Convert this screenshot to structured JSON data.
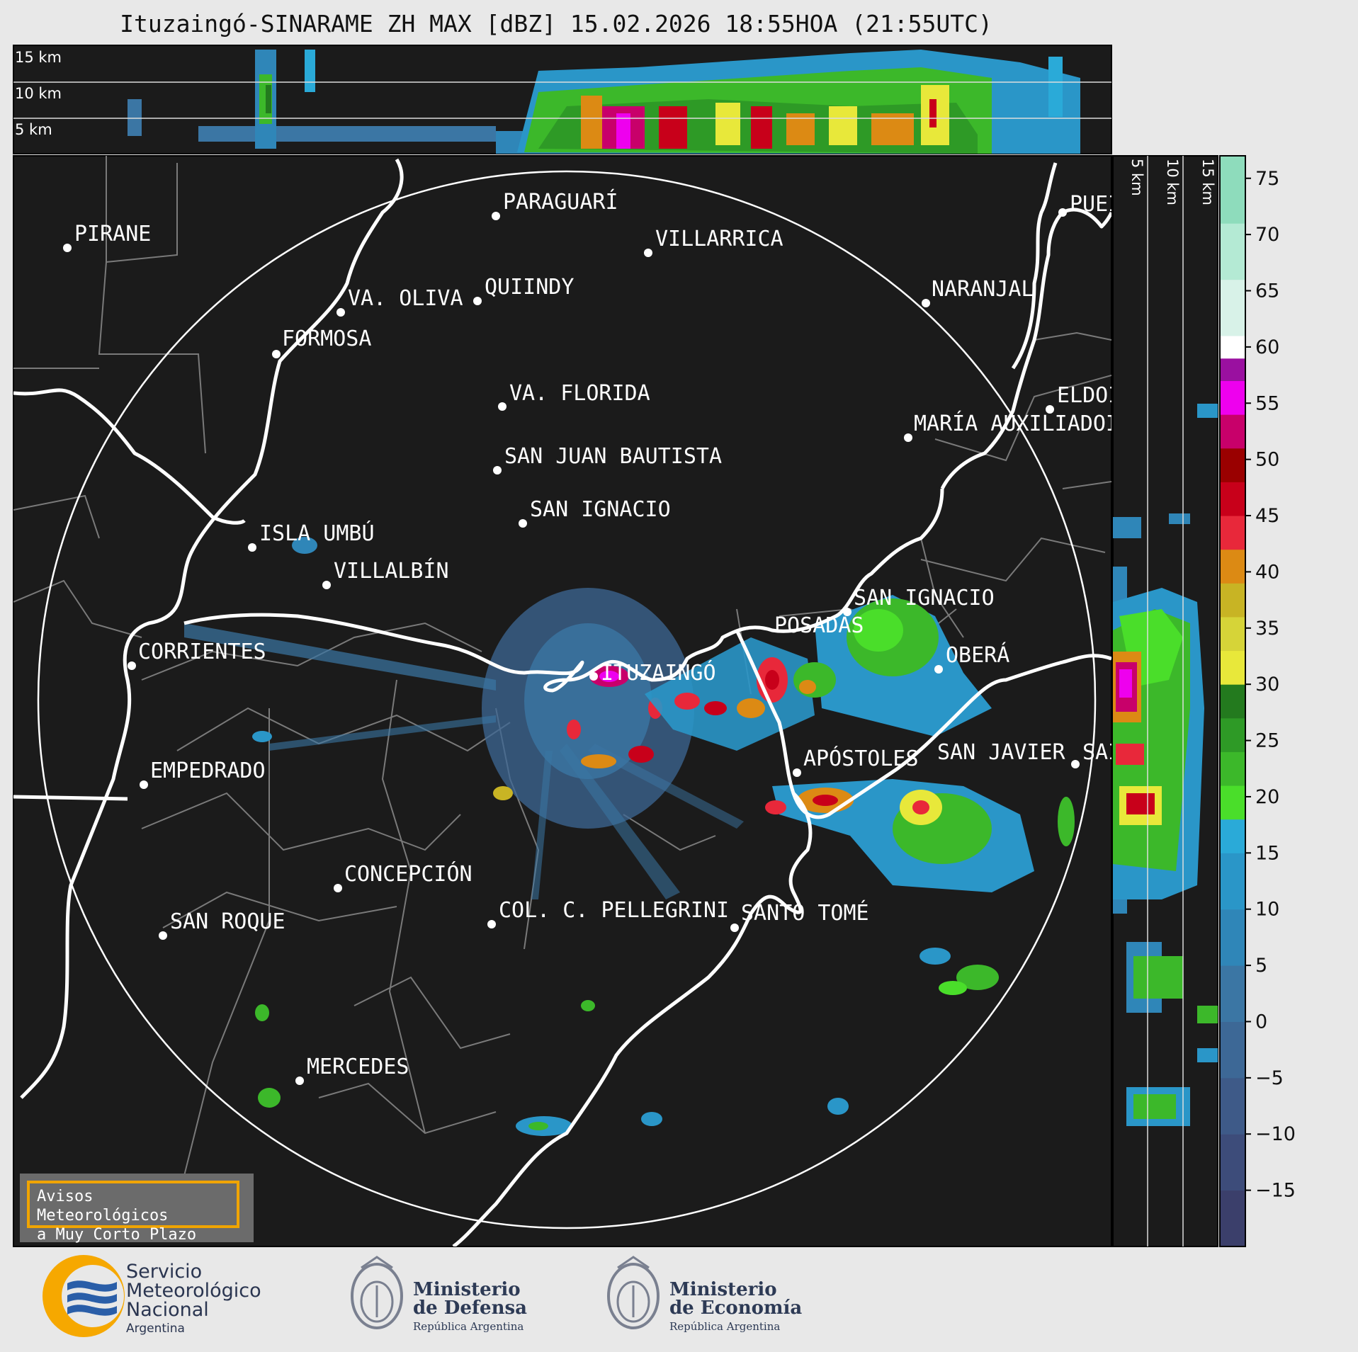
{
  "title": "Ituzaingó-SINARAME ZH MAX [dBZ] 15.02.2026 18:55HOA (21:55UTC)",
  "top_panel_heights": [
    "15 km",
    "10 km",
    "5 km"
  ],
  "side_panel_heights": [
    "5 km",
    "10 km",
    "15 km"
  ],
  "cities": [
    {
      "name": "PIRANE"
    },
    {
      "name": "PARAGUARÍ"
    },
    {
      "name": "VILLARRICA"
    },
    {
      "name": "QUIINDY"
    },
    {
      "name": "VA. OLIVA"
    },
    {
      "name": "FORMOSA"
    },
    {
      "name": "NARANJAL"
    },
    {
      "name": "PUEI"
    },
    {
      "name": "VA. FLORIDA"
    },
    {
      "name": "ELDOI"
    },
    {
      "name": "MARÍA AUXILIADOI"
    },
    {
      "name": "SAN JUAN BAUTISTA"
    },
    {
      "name": "SAN IGNACIO"
    },
    {
      "name": "ISLA UMBÚ"
    },
    {
      "name": "VILLALBÍN"
    },
    {
      "name": "SAN IGNACIO"
    },
    {
      "name": "POSADAS"
    },
    {
      "name": "CORRIENTES"
    },
    {
      "name": "ITUZAINGÓ"
    },
    {
      "name": "OBERÁ"
    },
    {
      "name": "APÓSTOLES"
    },
    {
      "name": "SAN JAVIER"
    },
    {
      "name": "SAI"
    },
    {
      "name": "EMPEDRADO"
    },
    {
      "name": "CONCEPCIÓN"
    },
    {
      "name": "COL. C. PELLEGRINI"
    },
    {
      "name": "SANTO TOMÉ"
    },
    {
      "name": "SAN ROQUE"
    },
    {
      "name": "MERCEDES"
    }
  ],
  "colorbar": {
    "ticks": [
      "75",
      "70",
      "65",
      "60",
      "55",
      "50",
      "45",
      "40",
      "35",
      "30",
      "25",
      "20",
      "15",
      "10",
      "5",
      "0",
      "−5",
      "−10",
      "−15"
    ],
    "scale_min": -20,
    "scale_max": 77,
    "stops": [
      {
        "from": -20,
        "to": -15,
        "color": "#3b3f6b"
      },
      {
        "from": -15,
        "to": -10,
        "color": "#3d4c7a"
      },
      {
        "from": -10,
        "to": -5,
        "color": "#3e5a88"
      },
      {
        "from": -5,
        "to": 0,
        "color": "#3d6896"
      },
      {
        "from": 0,
        "to": 5,
        "color": "#3b76a4"
      },
      {
        "from": 5,
        "to": 10,
        "color": "#2f86b8"
      },
      {
        "from": 10,
        "to": 15,
        "color": "#2a96c8"
      },
      {
        "from": 15,
        "to": 18,
        "color": "#2aaad8"
      },
      {
        "from": 18,
        "to": 21,
        "color": "#4ade2a"
      },
      {
        "from": 21,
        "to": 24,
        "color": "#3cb82a"
      },
      {
        "from": 24,
        "to": 27,
        "color": "#2e9a26"
      },
      {
        "from": 27,
        "to": 30,
        "color": "#237a1e"
      },
      {
        "from": 30,
        "to": 33,
        "color": "#e8e83a"
      },
      {
        "from": 33,
        "to": 36,
        "color": "#d6d438"
      },
      {
        "from": 36,
        "to": 39,
        "color": "#c8b424"
      },
      {
        "from": 39,
        "to": 42,
        "color": "#dc8a14"
      },
      {
        "from": 42,
        "to": 45,
        "color": "#e8283a"
      },
      {
        "from": 45,
        "to": 48,
        "color": "#c8001a"
      },
      {
        "from": 48,
        "to": 51,
        "color": "#9a0000"
      },
      {
        "from": 51,
        "to": 54,
        "color": "#c8006a"
      },
      {
        "from": 54,
        "to": 57,
        "color": "#ee00ee"
      },
      {
        "from": 57,
        "to": 59,
        "color": "#9a10a0"
      },
      {
        "from": 59,
        "to": 61,
        "color": "#ffffff"
      },
      {
        "from": 61,
        "to": 66,
        "color": "#d8f2e8"
      },
      {
        "from": 66,
        "to": 71,
        "color": "#b4ead4"
      },
      {
        "from": 71,
        "to": 77,
        "color": "#8edcbc"
      }
    ]
  },
  "avisos": {
    "line1": "Avisos Meteorológicos",
    "line2": "a Muy Corto Plazo"
  },
  "logos": {
    "smn": {
      "line1": "Servicio",
      "line2": "Meteorológico",
      "line3": "Nacional",
      "line4": "Argentina"
    },
    "defensa": {
      "line1": "Ministerio",
      "line2": "de Defensa",
      "line3": "República Argentina"
    },
    "economia": {
      "line1": "Ministerio",
      "line2": "de Economía",
      "line3": "República Argentina"
    }
  },
  "colors": {
    "map_bg": "#1b1b1b",
    "page_bg": "#e8e8e8",
    "accent_box": "#f0a400",
    "logo_blue": "#2a5ea8",
    "logo_orange": "#f6a800"
  }
}
